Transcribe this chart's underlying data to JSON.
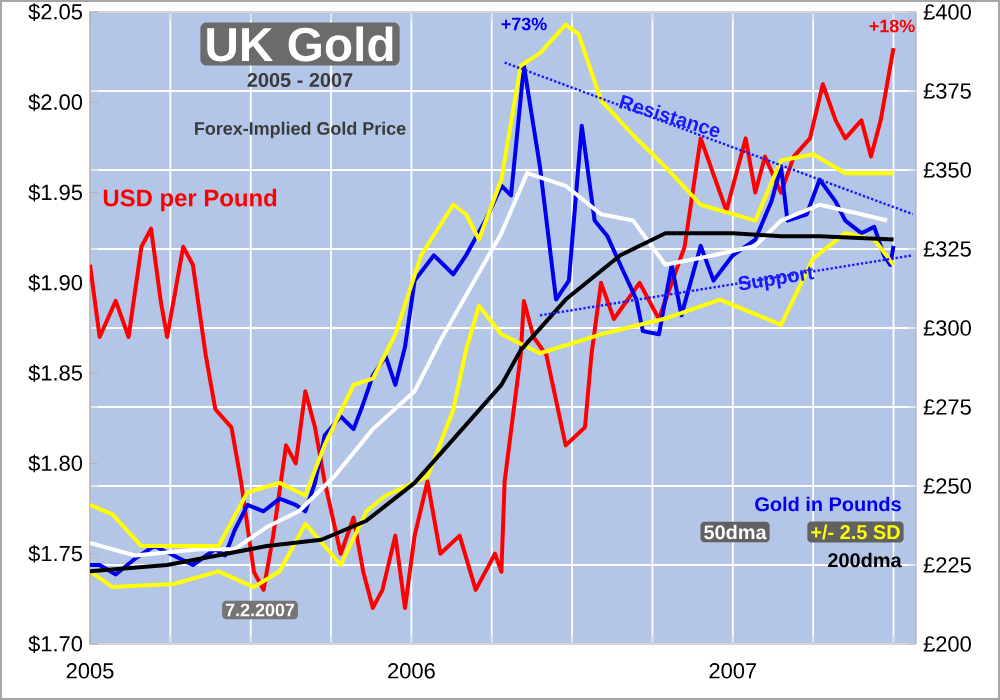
{
  "chart_data": {
    "type": "line",
    "title": "UK Gold",
    "subtitle": "2005 - 2007",
    "annotations": [
      "Forex-Implied Gold Price",
      "+73%",
      "+18%",
      "7.2.2007"
    ],
    "xlim": [
      2005,
      2007.57
    ],
    "xticks": [
      2005,
      {
        "value": 2005.25,
        "label": null
      },
      {
        "value": 2005.5,
        "label": null
      },
      {
        "value": 2005.75,
        "label": null
      },
      2006,
      {
        "value": 2006.25,
        "label": null
      },
      {
        "value": 2006.5,
        "label": null
      },
      {
        "value": 2006.75,
        "label": null
      },
      2007,
      {
        "value": 2007.25,
        "label": null
      },
      {
        "value": 2007.5,
        "label": null
      }
    ],
    "ylim": [
      1.7,
      2.05
    ],
    "yticks": [
      {
        "value": 1.7,
        "label": "$1.70"
      },
      {
        "value": 1.75,
        "label": "$1.75"
      },
      {
        "value": 1.8,
        "label": "$1.80"
      },
      {
        "value": 1.85,
        "label": "$1.85"
      },
      {
        "value": 1.9,
        "label": "$1.90"
      },
      {
        "value": 1.95,
        "label": "$1.95"
      },
      {
        "value": 2.0,
        "label": "$2.00"
      },
      {
        "value": 2.05,
        "label": "$2.05"
      }
    ],
    "y2lim": [
      200,
      400
    ],
    "y2ticks": [
      {
        "value": 200,
        "label": "£200"
      },
      {
        "value": 225,
        "label": "£225"
      },
      {
        "value": 250,
        "label": "£250"
      },
      {
        "value": 275,
        "label": "£275"
      },
      {
        "value": 300,
        "label": "£300"
      },
      {
        "value": 325,
        "label": "£325"
      },
      {
        "value": 350,
        "label": "£350"
      },
      {
        "value": 375,
        "label": "£375"
      },
      {
        "value": 400,
        "label": "£400"
      }
    ],
    "grid": true,
    "series": [
      {
        "name": "Gold in Pounds",
        "color": "#0000ee",
        "axis": "y2",
        "x": [
          2005.0,
          2005.03,
          2005.08,
          2005.14,
          2005.2,
          2005.26,
          2005.32,
          2005.39,
          2005.42,
          2005.45,
          2005.49,
          2005.54,
          2005.59,
          2005.64,
          2005.67,
          2005.7,
          2005.73,
          2005.78,
          2005.82,
          2005.85,
          2005.88,
          2005.92,
          2005.95,
          2005.98,
          2006.01,
          2006.07,
          2006.13,
          2006.17,
          2006.23,
          2006.28,
          2006.31,
          2006.35,
          2006.4,
          2006.45,
          2006.49,
          2006.53,
          2006.57,
          2006.61,
          2006.65,
          2006.7,
          2006.72,
          2006.77,
          2006.81,
          2006.84,
          2006.9,
          2006.94,
          2007.0,
          2007.07,
          2007.12,
          2007.15,
          2007.17,
          2007.23,
          2007.27,
          2007.32,
          2007.35,
          2007.4,
          2007.44,
          2007.47,
          2007.49,
          2007.5
        ],
        "values": [
          225,
          225,
          222,
          227,
          231,
          228,
          225,
          230,
          228,
          236,
          244,
          242,
          246,
          244,
          242,
          251,
          266,
          272,
          268,
          276,
          285,
          291,
          282,
          294,
          315,
          323,
          317,
          323,
          334,
          345,
          342,
          383,
          351,
          309,
          315,
          364,
          334,
          329,
          320,
          309,
          299,
          298,
          320,
          304,
          326,
          315,
          323,
          328,
          340,
          351,
          334,
          336,
          347,
          340,
          334,
          330,
          332,
          323,
          320,
          326
        ]
      },
      {
        "name": "50dma",
        "color": "#ffffff",
        "axis": "y2",
        "x": [
          2005.0,
          2005.14,
          2005.34,
          2005.45,
          2005.55,
          2005.65,
          2005.76,
          2005.88,
          2006.01,
          2006.09,
          2006.28,
          2006.36,
          2006.48,
          2006.59,
          2006.69,
          2006.79,
          2006.94,
          2007.07,
          2007.15,
          2007.27,
          2007.4,
          2007.48
        ],
        "values": [
          232,
          228,
          230,
          230,
          237,
          242,
          253,
          268,
          280,
          296,
          330,
          349,
          345,
          336,
          334,
          320,
          323,
          326,
          334,
          339,
          336,
          334
        ]
      },
      {
        "name": "+/- 2.5 SD",
        "color": "#ffff00",
        "axis": "y2",
        "x": [
          2005.0,
          2005.07,
          2005.16,
          2005.34,
          2005.4,
          2005.49,
          2005.59,
          2005.67,
          2005.73,
          2005.82,
          2005.88,
          2005.95,
          2006.03,
          2006.13,
          2006.17,
          2006.21,
          2006.28,
          2006.34,
          2006.4,
          2006.48,
          2006.52,
          2006.59,
          2006.69,
          2006.79,
          2006.9,
          2007.07,
          2007.15,
          2007.25,
          2007.35,
          2007.5
        ],
        "values": [
          244,
          241,
          231,
          231,
          231,
          248,
          251,
          247,
          263,
          282,
          284,
          298,
          323,
          339,
          336,
          328,
          347,
          383,
          387,
          396,
          393,
          372,
          361,
          351,
          339,
          334,
          353,
          355,
          349,
          349
        ]
      },
      {
        "color": "#ffff00",
        "axis": "y2",
        "x": [
          2005.0,
          2005.07,
          2005.26,
          2005.4,
          2005.51,
          2005.59,
          2005.67,
          2005.73,
          2005.78,
          2005.86,
          2005.92,
          2006.05,
          2006.13,
          2006.17,
          2006.21,
          2006.28,
          2006.4,
          2006.59,
          2006.79,
          2006.96,
          2007.15,
          2007.25,
          2007.35,
          2007.44,
          2007.5
        ],
        "values": [
          223,
          218,
          219,
          223,
          218,
          223,
          238,
          231,
          225,
          242,
          247,
          253,
          274,
          293,
          307,
          298,
          292,
          298,
          303,
          309,
          301,
          322,
          330,
          328,
          320
        ]
      },
      {
        "name": "200dma",
        "color": "#000000",
        "axis": "y2",
        "x": [
          2005.0,
          2005.24,
          2005.55,
          2005.72,
          2005.86,
          2006.01,
          2006.28,
          2006.34,
          2006.48,
          2006.65,
          2006.79,
          2007.0,
          2007.15,
          2007.27,
          2007.5
        ],
        "values": [
          223,
          225,
          231,
          233,
          239,
          251,
          282,
          293,
          309,
          323,
          330,
          330,
          329,
          329,
          328
        ]
      },
      {
        "name": "USD per Pound",
        "color": "#ff0000",
        "x": [
          2005.0,
          2005.03,
          2005.08,
          2005.12,
          2005.16,
          2005.19,
          2005.22,
          2005.24,
          2005.29,
          2005.32,
          2005.36,
          2005.39,
          2005.44,
          2005.47,
          2005.51,
          2005.54,
          2005.57,
          2005.61,
          2005.64,
          2005.67,
          2005.7,
          2005.73,
          2005.78,
          2005.82,
          2005.85,
          2005.88,
          2005.91,
          2005.95,
          2005.98,
          2006.01,
          2006.05,
          2006.09,
          2006.15,
          2006.2,
          2006.26,
          2006.28,
          2006.29,
          2006.34,
          2006.35,
          2006.38,
          2006.42,
          2006.48,
          2006.54,
          2006.56,
          2006.59,
          2006.63,
          2006.71,
          2006.77,
          2006.85,
          2006.9,
          2006.94,
          2006.98,
          2007.04,
          2007.07,
          2007.1,
          2007.15,
          2007.19,
          2007.24,
          2007.28,
          2007.32,
          2007.35,
          2007.4,
          2007.43,
          2007.46,
          2007.48,
          2007.5
        ],
        "values": [
          1.91,
          1.87,
          1.89,
          1.87,
          1.92,
          1.93,
          1.89,
          1.87,
          1.92,
          1.91,
          1.86,
          1.83,
          1.82,
          1.79,
          1.74,
          1.73,
          1.76,
          1.81,
          1.8,
          1.84,
          1.82,
          1.79,
          1.75,
          1.77,
          1.74,
          1.72,
          1.73,
          1.76,
          1.72,
          1.76,
          1.79,
          1.75,
          1.76,
          1.73,
          1.75,
          1.74,
          1.79,
          1.86,
          1.89,
          1.87,
          1.86,
          1.81,
          1.82,
          1.86,
          1.9,
          1.88,
          1.9,
          1.88,
          1.92,
          1.98,
          1.96,
          1.94,
          1.98,
          1.95,
          1.97,
          1.95,
          1.97,
          1.98,
          2.01,
          1.99,
          1.98,
          1.99,
          1.97,
          1.99,
          2.01,
          2.03
        ]
      },
      {
        "name": "Resistance",
        "type": "line",
        "line_style": "dotted",
        "color": "#1a1aff",
        "axis": "y2",
        "x": [
          2006.29,
          2007.56
        ],
        "values": [
          384,
          336
        ]
      },
      {
        "name": "Support",
        "type": "line",
        "line_style": "dotted",
        "color": "#1a1aff",
        "axis": "y2",
        "x": [
          2006.4,
          2007.56
        ],
        "values": [
          304,
          323
        ]
      }
    ]
  }
}
